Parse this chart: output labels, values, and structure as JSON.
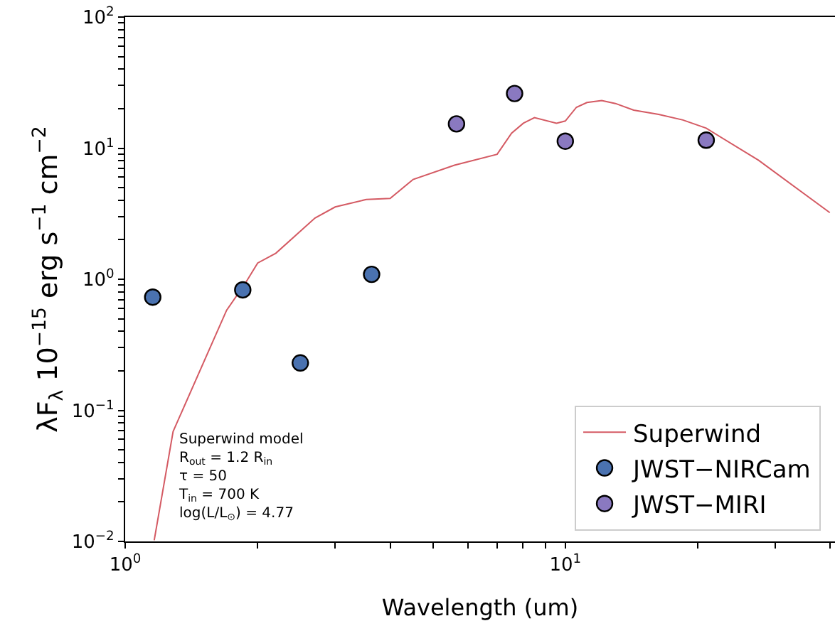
{
  "chart_data": {
    "type": "line",
    "xlabel": "Wavelength (um)",
    "ylabel": "λF$_{λ}$ 10$^{−15}$ erg s$^{−1}$ cm$^{−2}$",
    "log": "xy",
    "grid": false,
    "legend": "bottom right",
    "xlim": [
      1,
      41
    ],
    "ylim": [
      0.01,
      100
    ],
    "xticks": [
      {
        "value": 1,
        "label": "10$^{0}$"
      },
      {
        "value": 2,
        "label": null
      },
      {
        "value": 3,
        "label": null
      },
      {
        "value": 4,
        "label": null
      },
      {
        "value": 5,
        "label": null
      },
      {
        "value": 6,
        "label": null
      },
      {
        "value": 7,
        "label": null
      },
      {
        "value": 8,
        "label": null
      },
      {
        "value": 9,
        "label": null
      },
      {
        "value": 10,
        "label": "10$^{1}$"
      },
      {
        "value": 20,
        "label": null
      },
      {
        "value": 30,
        "label": null
      },
      {
        "value": 40,
        "label": null
      }
    ],
    "yticks": [
      {
        "value": 0.01,
        "label": "10$^{−2}$"
      },
      {
        "value": 0.02,
        "label": null
      },
      {
        "value": 0.03,
        "label": null
      },
      {
        "value": 0.04,
        "label": null
      },
      {
        "value": 0.05,
        "label": null
      },
      {
        "value": 0.06,
        "label": null
      },
      {
        "value": 0.07,
        "label": null
      },
      {
        "value": 0.08,
        "label": null
      },
      {
        "value": 0.09,
        "label": null
      },
      {
        "value": 0.1,
        "label": "10$^{−1}$"
      },
      {
        "value": 0.2,
        "label": null
      },
      {
        "value": 0.3,
        "label": null
      },
      {
        "value": 0.4,
        "label": null
      },
      {
        "value": 0.5,
        "label": null
      },
      {
        "value": 0.6,
        "label": null
      },
      {
        "value": 0.7,
        "label": null
      },
      {
        "value": 0.8,
        "label": null
      },
      {
        "value": 0.9,
        "label": null
      },
      {
        "value": 1,
        "label": "10$^{0}$"
      },
      {
        "value": 2,
        "label": null
      },
      {
        "value": 3,
        "label": null
      },
      {
        "value": 4,
        "label": null
      },
      {
        "value": 5,
        "label": null
      },
      {
        "value": 6,
        "label": null
      },
      {
        "value": 7,
        "label": null
      },
      {
        "value": 8,
        "label": null
      },
      {
        "value": 9,
        "label": null
      },
      {
        "value": 10,
        "label": "10$^{1}$"
      },
      {
        "value": 20,
        "label": null
      },
      {
        "value": 30,
        "label": null
      },
      {
        "value": 40,
        "label": null
      },
      {
        "value": 50,
        "label": null
      },
      {
        "value": 60,
        "label": null
      },
      {
        "value": 70,
        "label": null
      },
      {
        "value": 80,
        "label": null
      },
      {
        "value": 90,
        "label": null
      },
      {
        "value": 100,
        "label": "10$^{2}$"
      }
    ],
    "annotations": [
      "Superwind model\nR$_{out}$ = 1.2 R$_{in}$\nτ = 50\nT$_{in}$ = 700 K\nlog(L/L$_{⊙}$) = 4.77"
    ],
    "series": [
      {
        "name": "Superwind",
        "type": "line",
        "color": "#d45a63",
        "marker": "none",
        "line_style": "solid",
        "x": [
          1.164,
          1.285,
          1.7,
          1.87,
          2.0,
          2.2,
          2.7,
          3.0,
          3.53,
          4.0,
          4.51,
          5.6,
          7.0,
          7.55,
          8.03,
          8.51,
          9.55,
          10.0,
          10.6,
          11.2,
          12.1,
          13.0,
          14.3,
          16.3,
          18.5,
          20.9,
          27.5,
          39.9
        ],
        "values": [
          0.0102,
          0.069,
          0.58,
          0.92,
          1.33,
          1.58,
          2.93,
          3.56,
          4.06,
          4.13,
          5.77,
          7.41,
          8.98,
          13.0,
          15.5,
          17.1,
          15.5,
          16.1,
          20.5,
          22.3,
          23.1,
          21.9,
          19.5,
          18.1,
          16.4,
          14.2,
          8.07,
          3.22
        ]
      },
      {
        "name": "JWST−NIRCam",
        "type": "scatter",
        "color": "#4a72b0",
        "marker": "circle",
        "x": [
          1.155,
          1.85,
          2.5,
          3.63
        ],
        "values": [
          0.73,
          0.83,
          0.23,
          1.09
        ]
      },
      {
        "name": "JWST−MIRI",
        "type": "scatter",
        "color": "#8a79c0",
        "marker": "circle",
        "x": [
          5.66,
          7.67,
          10.0,
          20.9
        ],
        "values": [
          15.3,
          26.1,
          11.3,
          11.5
        ]
      }
    ]
  }
}
